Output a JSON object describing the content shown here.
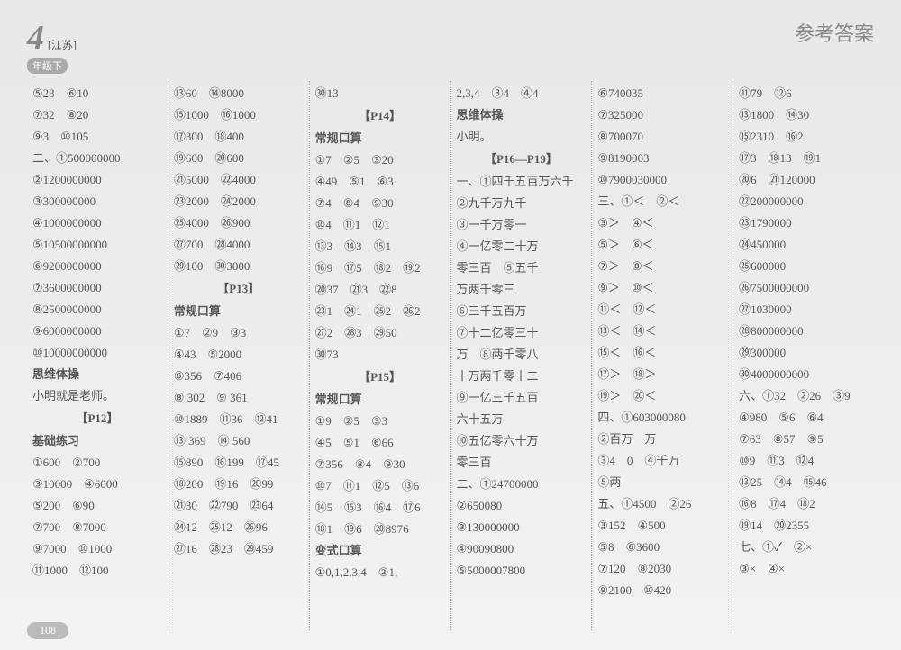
{
  "header": {
    "grade_num": "4",
    "region": "[江苏]",
    "grade_label": "年级下",
    "title": "参考答案"
  },
  "page_number": "108",
  "columns": [
    [
      {
        "t": "l",
        "v": "⑤23　⑥10"
      },
      {
        "t": "l",
        "v": "⑦32　⑧20"
      },
      {
        "t": "l",
        "v": "⑨3　⑩105"
      },
      {
        "t": "l",
        "v": "二、①500000000"
      },
      {
        "t": "l",
        "v": "②1200000000"
      },
      {
        "t": "l",
        "v": "③300000000"
      },
      {
        "t": "l",
        "v": "④1000000000"
      },
      {
        "t": "l",
        "v": "⑤10500000000"
      },
      {
        "t": "l",
        "v": "⑥9200000000"
      },
      {
        "t": "l",
        "v": "⑦3600000000"
      },
      {
        "t": "l",
        "v": "⑧2500000000"
      },
      {
        "t": "l",
        "v": "⑨6000000000"
      },
      {
        "t": "l",
        "v": "⑩10000000000"
      },
      {
        "t": "s",
        "v": "思维体操"
      },
      {
        "t": "l",
        "v": "小明就是老师。"
      },
      {
        "t": "h",
        "v": "【P12】"
      },
      {
        "t": "s",
        "v": "基础练习"
      },
      {
        "t": "l",
        "v": "①600　②700"
      },
      {
        "t": "l",
        "v": "③10000　④6000"
      },
      {
        "t": "l",
        "v": "⑤200　⑥90"
      },
      {
        "t": "l",
        "v": "⑦700　⑧7000"
      },
      {
        "t": "l",
        "v": "⑨7000　⑩1000"
      },
      {
        "t": "l",
        "v": "⑪1000　⑫100"
      }
    ],
    [
      {
        "t": "l",
        "v": "⑬60　⑭8000"
      },
      {
        "t": "l",
        "v": "⑮1000　⑯1000"
      },
      {
        "t": "l",
        "v": "⑰300　⑱400"
      },
      {
        "t": "l",
        "v": "⑲600　⑳600"
      },
      {
        "t": "l",
        "v": "㉑5000　㉒4000"
      },
      {
        "t": "l",
        "v": "㉓2000　㉔2000"
      },
      {
        "t": "l",
        "v": "㉕4000　㉖900"
      },
      {
        "t": "l",
        "v": "㉗700　㉘4000"
      },
      {
        "t": "l",
        "v": "㉙100　㉚3000"
      },
      {
        "t": "h",
        "v": "【P13】"
      },
      {
        "t": "s",
        "v": "常规口算"
      },
      {
        "t": "l",
        "v": "①7　②9　③3"
      },
      {
        "t": "l",
        "v": "④43　⑤2000"
      },
      {
        "t": "l",
        "v": "⑥356　⑦406"
      },
      {
        "t": "l",
        "v": "⑧ 302　⑨ 361"
      },
      {
        "t": "l",
        "v": "⑩1889　⑪36　⑫41"
      },
      {
        "t": "l",
        "v": "⑬ 369　⑭ 560"
      },
      {
        "t": "l",
        "v": "⑮890　⑯199　⑰45"
      },
      {
        "t": "l",
        "v": "⑱200　⑲16　⑳99"
      },
      {
        "t": "l",
        "v": "㉑30　㉒790　㉓64"
      },
      {
        "t": "l",
        "v": "㉔12　㉕12　㉖96"
      },
      {
        "t": "l",
        "v": "㉗16　㉘23　㉙459"
      }
    ],
    [
      {
        "t": "l",
        "v": "㉚13"
      },
      {
        "t": "h",
        "v": "【P14】"
      },
      {
        "t": "s",
        "v": "常规口算"
      },
      {
        "t": "l",
        "v": "①7　②5　③20"
      },
      {
        "t": "l",
        "v": "④49　⑤1　⑥3"
      },
      {
        "t": "l",
        "v": "⑦4　⑧4　⑨30"
      },
      {
        "t": "l",
        "v": "⑩4　⑪1　⑫1"
      },
      {
        "t": "l",
        "v": "⑬3　⑭3　⑮1"
      },
      {
        "t": "l",
        "v": "⑯9　⑰5　⑱2　⑲2"
      },
      {
        "t": "l",
        "v": "⑳37　㉑3　㉒8"
      },
      {
        "t": "l",
        "v": "㉓1　㉔1　㉕2　㉖2"
      },
      {
        "t": "l",
        "v": "㉗2　㉘3　㉙50"
      },
      {
        "t": "l",
        "v": "㉚73"
      },
      {
        "t": "h",
        "v": "【P15】"
      },
      {
        "t": "s",
        "v": "常规口算"
      },
      {
        "t": "l",
        "v": "①9　②5　③3"
      },
      {
        "t": "l",
        "v": "④5　⑤1　⑥66"
      },
      {
        "t": "l",
        "v": "⑦356　⑧4　⑨30"
      },
      {
        "t": "l",
        "v": "⑩7　⑪1　⑫5　⑬6"
      },
      {
        "t": "l",
        "v": "⑭5　⑮3　⑯4　⑰6"
      },
      {
        "t": "l",
        "v": "⑱1　⑲6　⑳8976"
      },
      {
        "t": "s",
        "v": "变式口算"
      },
      {
        "t": "l",
        "v": "①0,1,2,3,4　②1,"
      }
    ],
    [
      {
        "t": "l",
        "v": "2,3,4　③4　④4"
      },
      {
        "t": "s",
        "v": "思维体操"
      },
      {
        "t": "l",
        "v": "小明。"
      },
      {
        "t": "h",
        "v": "【P16—P19】"
      },
      {
        "t": "l",
        "v": "一、①四千五百万六千"
      },
      {
        "t": "l",
        "v": "②九千万九千"
      },
      {
        "t": "l",
        "v": "③一千万零一"
      },
      {
        "t": "l",
        "v": "④一亿零二十万"
      },
      {
        "t": "l",
        "v": "零三百　⑤五千"
      },
      {
        "t": "l",
        "v": "万两千零三"
      },
      {
        "t": "l",
        "v": "⑥三千五百万"
      },
      {
        "t": "l",
        "v": "⑦十二亿零三十"
      },
      {
        "t": "l",
        "v": "万　⑧两千零八"
      },
      {
        "t": "l",
        "v": "十万两千零十二"
      },
      {
        "t": "l",
        "v": "⑨一亿三千五百"
      },
      {
        "t": "l",
        "v": "六十五万"
      },
      {
        "t": "l",
        "v": "⑩五亿零六十万"
      },
      {
        "t": "l",
        "v": "零三百"
      },
      {
        "t": "l",
        "v": "二、①24700000"
      },
      {
        "t": "l",
        "v": "②650080"
      },
      {
        "t": "l",
        "v": "③130000000"
      },
      {
        "t": "l",
        "v": "④90090800"
      },
      {
        "t": "l",
        "v": "⑤5000007800"
      }
    ],
    [
      {
        "t": "l",
        "v": "⑥740035"
      },
      {
        "t": "l",
        "v": "⑦325000"
      },
      {
        "t": "l",
        "v": "⑧700070"
      },
      {
        "t": "l",
        "v": "⑨8190003"
      },
      {
        "t": "l",
        "v": "⑩7900030000"
      },
      {
        "t": "l",
        "v": "三、①＜　②＜"
      },
      {
        "t": "l",
        "v": "③＞　④＜"
      },
      {
        "t": "l",
        "v": "⑤＞　⑥＜"
      },
      {
        "t": "l",
        "v": "⑦＞　⑧＜"
      },
      {
        "t": "l",
        "v": "⑨＞　⑩＜"
      },
      {
        "t": "l",
        "v": "⑪＜　⑫＜"
      },
      {
        "t": "l",
        "v": "⑬＜　⑭＜"
      },
      {
        "t": "l",
        "v": "⑮＜　⑯＜"
      },
      {
        "t": "l",
        "v": "⑰＞　⑱＞"
      },
      {
        "t": "l",
        "v": "⑲＞　⑳＜"
      },
      {
        "t": "l",
        "v": "四、①603000080"
      },
      {
        "t": "l",
        "v": "②百万　万"
      },
      {
        "t": "l",
        "v": "③4　0　④千万"
      },
      {
        "t": "l",
        "v": "⑤两"
      },
      {
        "t": "l",
        "v": "五、①4500　②26"
      },
      {
        "t": "l",
        "v": "③152　④500"
      },
      {
        "t": "l",
        "v": "⑤8　⑥3600"
      },
      {
        "t": "l",
        "v": "⑦120　⑧2030"
      },
      {
        "t": "l",
        "v": "⑨2100　⑩420"
      }
    ],
    [
      {
        "t": "l",
        "v": "⑪79　⑫6"
      },
      {
        "t": "l",
        "v": "⑬1800　⑭30"
      },
      {
        "t": "l",
        "v": "⑮2310　⑯2"
      },
      {
        "t": "l",
        "v": "⑰3　⑱13　⑲1"
      },
      {
        "t": "l",
        "v": "⑳6　㉑120000"
      },
      {
        "t": "l",
        "v": "㉒200000000"
      },
      {
        "t": "l",
        "v": "㉓1790000"
      },
      {
        "t": "l",
        "v": "㉔450000"
      },
      {
        "t": "l",
        "v": "㉕600000"
      },
      {
        "t": "l",
        "v": "㉖7500000000"
      },
      {
        "t": "l",
        "v": "㉗1030000"
      },
      {
        "t": "l",
        "v": "㉘800000000"
      },
      {
        "t": "l",
        "v": "㉙300000"
      },
      {
        "t": "l",
        "v": "㉚4000000000"
      },
      {
        "t": "l",
        "v": "六、①32　②26　③9"
      },
      {
        "t": "l",
        "v": "④980　⑤6　⑥4"
      },
      {
        "t": "l",
        "v": "⑦63　⑧57　⑨5"
      },
      {
        "t": "l",
        "v": "⑩9　⑪3　⑫4"
      },
      {
        "t": "l",
        "v": "⑬25　⑭4　⑮46"
      },
      {
        "t": "l",
        "v": "⑯8　⑰4　⑱2"
      },
      {
        "t": "l",
        "v": "⑲14　⑳2355"
      },
      {
        "t": "l",
        "v": "七、①✓　②×"
      },
      {
        "t": "l",
        "v": "③×　④×"
      }
    ]
  ]
}
